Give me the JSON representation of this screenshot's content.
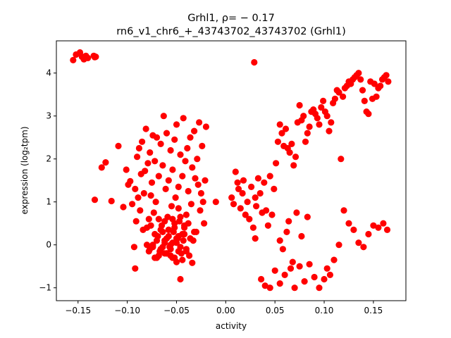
{
  "chart_data": {
    "type": "scatter",
    "title_line1": "Grhl1, ρ= − 0.17",
    "title_line2": "rn6_v1_chr6_+_43743702_43743702 (Grhl1)",
    "xlabel": "activity",
    "ylabel": "expression (log₂tpm)",
    "xlim": [
      -0.172,
      0.183
    ],
    "ylim": [
      -1.3,
      4.75
    ],
    "xticks": [
      -0.15,
      -0.1,
      -0.05,
      0.0,
      0.05,
      0.1,
      0.15
    ],
    "xtick_labels": [
      "−0.15",
      "−0.10",
      "−0.05",
      "0.00",
      "0.05",
      "0.10",
      "0.15"
    ],
    "yticks": [
      -1,
      0,
      1,
      2,
      3,
      4
    ],
    "ytick_labels": [
      "−1",
      "0",
      "1",
      "2",
      "3",
      "4"
    ],
    "grid": false,
    "marker_color": "#ff0000",
    "series": [
      {
        "x": [
          -0.155,
          -0.152,
          -0.148,
          -0.146,
          -0.144,
          -0.142,
          -0.14,
          -0.134,
          -0.133,
          -0.132,
          0.029,
          -0.133,
          -0.126,
          -0.122,
          -0.116,
          -0.109,
          -0.104,
          -0.101,
          -0.099,
          -0.097,
          -0.095,
          -0.093,
          -0.092,
          -0.091,
          -0.09,
          -0.089,
          -0.088,
          -0.087,
          -0.086,
          -0.085,
          -0.084,
          -0.083,
          -0.082,
          -0.081,
          -0.08,
          -0.079,
          -0.078,
          -0.077,
          -0.077,
          -0.076,
          -0.075,
          -0.074,
          -0.074,
          -0.073,
          -0.072,
          -0.072,
          -0.071,
          -0.07,
          -0.069,
          -0.068,
          -0.067,
          -0.066,
          -0.065,
          -0.064,
          -0.063,
          -0.062,
          -0.061,
          -0.06,
          -0.059,
          -0.058,
          -0.057,
          -0.056,
          -0.055,
          -0.054,
          -0.053,
          -0.052,
          -0.051,
          -0.05,
          -0.049,
          -0.048,
          -0.047,
          -0.046,
          -0.045,
          -0.044,
          -0.043,
          -0.042,
          -0.041,
          -0.04,
          -0.039,
          -0.038,
          -0.037,
          -0.036,
          -0.035,
          -0.034,
          -0.033,
          -0.032,
          -0.031,
          -0.03,
          -0.029,
          -0.028,
          -0.027,
          -0.026,
          -0.025,
          -0.024,
          -0.023,
          -0.022,
          -0.021,
          -0.02,
          -0.062,
          -0.06,
          -0.058,
          -0.056,
          -0.054,
          -0.052,
          -0.05,
          -0.048,
          -0.046,
          -0.044,
          -0.042,
          -0.04,
          -0.07,
          -0.068,
          -0.066,
          -0.064,
          -0.062,
          -0.06,
          -0.058,
          -0.056,
          -0.054,
          -0.052,
          -0.05,
          -0.048,
          -0.046,
          -0.044,
          -0.042,
          -0.04,
          -0.038,
          -0.036,
          -0.034,
          -0.032,
          -0.08,
          -0.078,
          -0.076,
          -0.074,
          -0.072,
          -0.07,
          -0.068,
          -0.066,
          -0.064,
          -0.062,
          -0.06,
          -0.058,
          -0.056,
          -0.054,
          -0.052,
          -0.05,
          -0.048,
          -0.046,
          -0.092,
          -0.043,
          -0.01,
          0.006,
          0.008,
          0.01,
          0.012,
          0.013,
          0.015,
          0.017,
          0.018,
          0.02,
          0.022,
          0.024,
          0.026,
          0.028,
          0.03,
          0.031,
          0.033,
          0.035,
          0.037,
          0.039,
          0.041,
          0.043,
          0.045,
          0.047,
          0.049,
          0.051,
          0.053,
          0.055,
          0.057,
          0.059,
          0.061,
          0.063,
          0.065,
          0.067,
          0.069,
          0.071,
          0.073,
          0.075,
          0.077,
          0.079,
          0.081,
          0.083,
          0.085,
          0.087,
          0.089,
          0.091,
          0.093,
          0.095,
          0.097,
          0.099,
          0.101,
          0.103,
          0.105,
          0.107,
          0.109,
          0.111,
          0.113,
          0.115,
          0.117,
          0.119,
          0.121,
          0.123,
          0.125,
          0.127,
          0.129,
          0.131,
          0.133,
          0.135,
          0.137,
          0.139,
          0.141,
          0.143,
          0.145,
          0.147,
          0.149,
          0.151,
          0.153,
          0.155,
          0.157,
          0.159,
          0.161,
          0.163,
          0.165,
          0.03,
          0.036,
          0.04,
          0.045,
          0.05,
          0.055,
          0.06,
          0.066,
          0.07,
          0.075,
          0.08,
          0.085,
          0.09,
          0.095,
          0.1,
          0.103,
          0.106,
          0.11,
          0.115,
          0.12,
          0.125,
          0.13,
          0.135,
          0.14,
          0.145,
          0.15,
          0.155,
          0.16,
          0.164,
          0.055,
          0.058,
          0.062,
          0.064,
          0.068,
          0.072,
          0.077,
          0.083
        ],
        "y": [
          4.3,
          4.43,
          4.48,
          4.38,
          4.32,
          4.4,
          4.35,
          4.4,
          4.37,
          4.38,
          4.25,
          1.05,
          1.8,
          1.92,
          1.02,
          2.3,
          0.88,
          1.75,
          1.4,
          1.48,
          0.95,
          -0.05,
          1.3,
          0.55,
          2.05,
          1.1,
          2.25,
          0.8,
          1.65,
          2.4,
          0.35,
          1.2,
          1.72,
          2.7,
          0.4,
          1.9,
          0.6,
          2.15,
          -0.1,
          1.15,
          1.45,
          0.0,
          2.55,
          0.75,
          1.95,
          -0.3,
          1.0,
          2.5,
          0.2,
          1.6,
          -0.15,
          2.35,
          0.45,
          1.85,
          3.0,
          0.1,
          1.3,
          2.6,
          0.65,
          1.5,
          -0.05,
          2.2,
          0.9,
          1.75,
          0.3,
          2.45,
          1.1,
          2.8,
          0.15,
          1.35,
          0.55,
          2.1,
          -0.2,
          1.6,
          2.95,
          0.4,
          1.95,
          0.7,
          2.25,
          1.25,
          -0.25,
          2.5,
          0.95,
          1.8,
          0.1,
          2.65,
          1.55,
          0.3,
          2.0,
          1.4,
          2.85,
          0.8,
          1.2,
          2.3,
          1.0,
          0.5,
          1.5,
          2.75,
          0.05,
          -0.2,
          0.35,
          -0.1,
          0.6,
          -0.3,
          0.15,
          0.85,
          -0.05,
          0.25,
          0.45,
          -0.15,
          0.1,
          -0.25,
          0.35,
          -0.05,
          0.55,
          -0.2,
          0.2,
          0.0,
          -0.3,
          0.4,
          0.05,
          -0.15,
          0.65,
          -0.35,
          0.25,
          -0.1,
          0.5,
          0.15,
          -0.42,
          0.3,
          0.0,
          -0.15,
          0.45,
          -0.05,
          0.25,
          -0.3,
          0.6,
          -0.1,
          0.3,
          -0.2,
          0.15,
          0.35,
          -0.25,
          0.05,
          0.5,
          -0.4,
          0.2,
          -0.8,
          -0.55,
          0.1,
          1.0,
          1.1,
          0.95,
          1.7,
          1.45,
          1.3,
          0.85,
          1.2,
          1.5,
          0.7,
          1.0,
          0.6,
          1.35,
          0.4,
          1.1,
          0.9,
          1.55,
          1.2,
          0.75,
          1.45,
          0.8,
          0.45,
          1.6,
          0.7,
          1.3,
          1.9,
          2.4,
          2.8,
          2.6,
          2.3,
          2.7,
          2.25,
          2.15,
          2.35,
          1.85,
          2.05,
          2.85,
          3.25,
          2.9,
          3.0,
          2.4,
          2.6,
          2.75,
          3.1,
          3.15,
          3.05,
          2.95,
          2.8,
          3.2,
          3.35,
          3.1,
          3.0,
          2.65,
          2.85,
          3.3,
          3.4,
          3.6,
          3.55,
          2.0,
          3.45,
          3.65,
          3.7,
          3.8,
          3.75,
          3.85,
          3.9,
          3.95,
          4.0,
          3.85,
          3.6,
          3.35,
          3.1,
          3.05,
          3.8,
          3.4,
          3.75,
          3.45,
          3.65,
          3.7,
          3.85,
          3.9,
          3.95,
          3.8,
          0.15,
          -0.8,
          -0.95,
          -1.0,
          -0.6,
          -0.9,
          -0.7,
          -0.55,
          -1.0,
          -0.5,
          -0.85,
          -0.45,
          -0.75,
          -1.0,
          -0.8,
          -0.55,
          -0.7,
          -0.35,
          0.0,
          0.8,
          0.5,
          0.35,
          0.05,
          -0.05,
          0.25,
          0.45,
          0.4,
          0.5,
          0.35,
          0.1,
          -0.1,
          0.3,
          0.55,
          -0.4,
          0.75,
          0.2,
          0.65
        ]
      }
    ]
  }
}
